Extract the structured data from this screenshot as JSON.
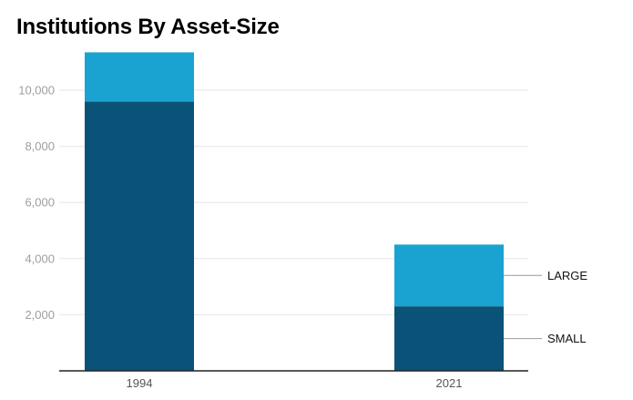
{
  "chart_data": {
    "type": "bar",
    "stacked": true,
    "title": "Institutions By Asset-Size",
    "categories": [
      "1994",
      "2021"
    ],
    "series": [
      {
        "name": "SMALL",
        "values": [
          9600,
          2300
        ],
        "color": "#0b5278"
      },
      {
        "name": "LARGE",
        "values": [
          1750,
          2200
        ],
        "color": "#1aa3d0"
      }
    ],
    "yticks": [
      "2,000",
      "4,000",
      "6,000",
      "8,000",
      "10,000"
    ],
    "ylim": [
      0,
      11500
    ],
    "grid": true,
    "legend_placement": "right of last bar, aligned to segments"
  }
}
